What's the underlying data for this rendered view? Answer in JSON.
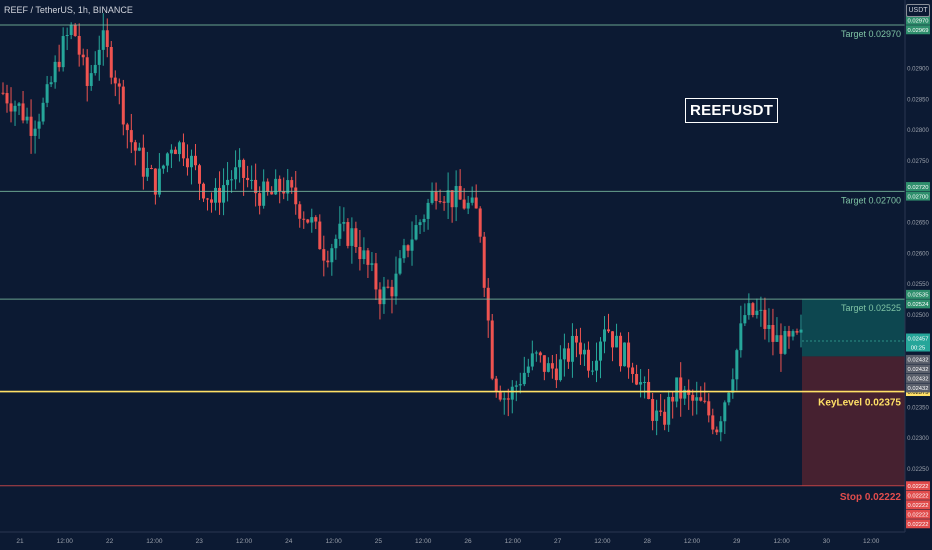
{
  "header": {
    "title": "REEF / TetherUS, 1h, BINANCE"
  },
  "watermark": "REEFUSDT",
  "currency_tag": "USDT",
  "colors": {
    "background": "#0c1a33",
    "up": "#26a69a",
    "down": "#ef5350",
    "target_line": "#7fc3a4",
    "key_line": "#ffe066",
    "stop_line": "#e14c4c",
    "profit_zone": "#0e4a52",
    "loss_zone": "#4a2230"
  },
  "chart_data": {
    "type": "candlestick",
    "symbol": "REEF / TetherUS",
    "timeframe": "1h",
    "exchange": "BINANCE",
    "ylim": [
      0.022,
      0.0302
    ],
    "y_ticks": [
      "0.02900",
      "0.02850",
      "0.02800",
      "0.02750",
      "0.02650",
      "0.02600",
      "0.02550",
      "0.02500",
      "0.02350",
      "0.02300",
      "0.02250"
    ],
    "x_ticks": [
      "21",
      "12:00",
      "22",
      "12:00",
      "23",
      "12:00",
      "24",
      "12:00",
      "25",
      "12:00",
      "26",
      "12:00",
      "27",
      "12:00",
      "28",
      "12:00",
      "29",
      "12:00",
      "30",
      "12:00"
    ],
    "close_series": [
      0.0286,
      0.0284,
      0.0281,
      0.0284,
      0.0292,
      0.0297,
      0.0287,
      0.0295,
      0.0289,
      0.0279,
      0.0274,
      0.0271,
      0.0278,
      0.0277,
      0.0272,
      0.0268,
      0.0272,
      0.0273,
      0.027,
      0.0269,
      0.0271,
      0.0268,
      0.0265,
      0.026,
      0.0263,
      0.0263,
      0.0258,
      0.0253,
      0.0255,
      0.0262,
      0.0266,
      0.0271,
      0.0269,
      0.0268,
      0.0266,
      0.024,
      0.0236,
      0.024,
      0.0243,
      0.0241,
      0.0242,
      0.0246,
      0.0242,
      0.0249,
      0.0244,
      0.0242,
      0.0236,
      0.0232,
      0.0238,
      0.0236,
      0.0235,
      0.0232,
      0.024,
      0.025,
      0.025,
      0.0246,
      0.0245,
      0.0246
    ],
    "levels": [
      {
        "name": "Target 0.02970",
        "label": "Target 0.02970",
        "value": 0.0297,
        "tags": [
          "0.02970",
          "0.02969"
        ]
      },
      {
        "name": "Target 0.02700",
        "label": "Target 0.02700",
        "value": 0.027,
        "tags": [
          "0.02720",
          "0.02700"
        ]
      },
      {
        "name": "Target 0.02525",
        "label": "Target 0.02525",
        "value": 0.02525,
        "tags": [
          "0.02535",
          "0.02524"
        ]
      },
      {
        "name": "KeyLevel 0.02375",
        "label": "KeyLevel 0.02375",
        "value": 0.02375,
        "tags": [
          "0.02375"
        ]
      },
      {
        "name": "Stop 0.02222",
        "label": "Stop 0.02222",
        "value": 0.02222,
        "tags": [
          "0.02222",
          "0.02222",
          "0.02222",
          "0.02222",
          "0.02222"
        ]
      }
    ],
    "position": {
      "entry": 0.02432,
      "target": 0.02525,
      "stop": 0.02222,
      "current_price": "0.02457",
      "countdown": "00:25",
      "entry_tags": [
        "0.02432",
        "0.02432",
        "0.02432",
        "0.02432"
      ]
    }
  }
}
